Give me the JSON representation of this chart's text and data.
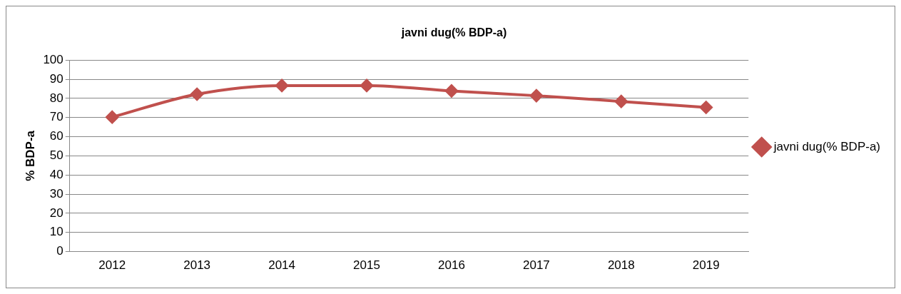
{
  "chart_data": {
    "type": "line",
    "title": "javni dug(% BDP-a)",
    "ylabel": "% BDP-a",
    "categories": [
      "2012",
      "2013",
      "2014",
      "2015",
      "2016",
      "2017",
      "2018",
      "2019"
    ],
    "series": [
      {
        "name": "javni dug(% BDP-a)",
        "color": "#c0504d",
        "values": [
          70.2,
          82.2,
          86.7,
          86.7,
          83.9,
          81.4,
          78.4,
          75.3
        ]
      }
    ],
    "ylim": [
      0,
      100
    ],
    "yticks": [
      0,
      10,
      20,
      30,
      40,
      50,
      60,
      70,
      80,
      90,
      100
    ],
    "grid": "y",
    "legend": "right",
    "marker": "diamond",
    "line_style": "solid"
  }
}
